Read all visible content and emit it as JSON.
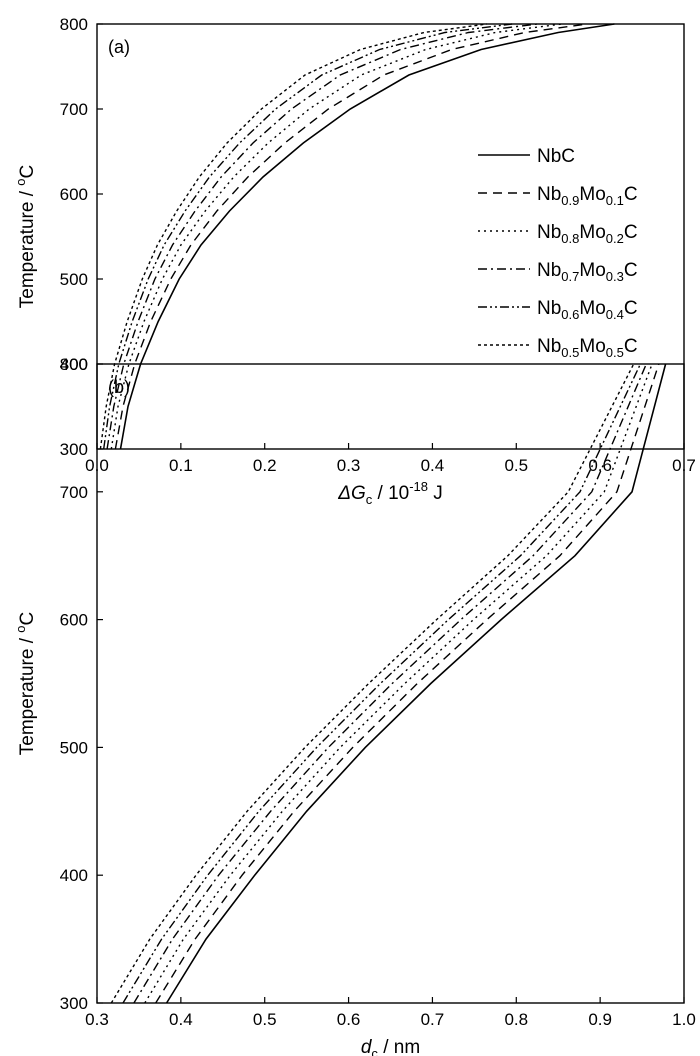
{
  "chart_data": [
    {
      "type": "line",
      "panel_label": "(a)",
      "xlabel": {
        "symbol": "ΔG",
        "sub": "c",
        "mid": " / 10",
        "sup": "-18",
        "unit": " J"
      },
      "ylabel": {
        "main": "Temperature / ",
        "sup": "o",
        "unit": "C"
      },
      "xlim": [
        0.0,
        0.7
      ],
      "ylim": [
        300,
        800
      ],
      "xticks": [
        "0.0",
        "0.1",
        "0.2",
        "0.3",
        "0.4",
        "0.5",
        "0.6",
        "0.7"
      ],
      "yticks": [
        "300",
        "400",
        "500",
        "600",
        "700",
        "800"
      ],
      "legend_position": "right",
      "series": [
        {
          "name": "NbC",
          "legend": {
            "base": "Nb",
            "s1": "",
            "mid": "",
            "s2": "",
            "end": "C"
          },
          "x": [
            0.028,
            0.037,
            0.052,
            0.073,
            0.098,
            0.124,
            0.158,
            0.198,
            0.246,
            0.302,
            0.372,
            0.458,
            0.55,
            0.617
          ],
          "y": [
            300,
            350,
            400,
            450,
            500,
            540,
            580,
            620,
            660,
            700,
            740,
            770,
            790,
            800
          ]
        },
        {
          "name": "Nb0.9Mo0.1C",
          "legend": {
            "base": "Nb",
            "s1": "0.9",
            "mid": "Mo",
            "s2": "0.1",
            "end": "C"
          },
          "x": [
            0.022,
            0.031,
            0.045,
            0.064,
            0.088,
            0.112,
            0.143,
            0.18,
            0.224,
            0.276,
            0.342,
            0.423,
            0.51,
            0.585
          ],
          "y": [
            300,
            350,
            400,
            450,
            500,
            540,
            580,
            620,
            660,
            700,
            740,
            770,
            790,
            800
          ]
        },
        {
          "name": "Nb0.8Mo0.2C",
          "legend": {
            "base": "Nb",
            "s1": "0.8",
            "mid": "Mo",
            "s2": "0.2",
            "end": "C"
          },
          "x": [
            0.017,
            0.025,
            0.038,
            0.056,
            0.078,
            0.1,
            0.129,
            0.163,
            0.204,
            0.253,
            0.315,
            0.392,
            0.475,
            0.555
          ],
          "y": [
            300,
            350,
            400,
            450,
            500,
            540,
            580,
            620,
            660,
            700,
            740,
            770,
            790,
            800
          ]
        },
        {
          "name": "Nb0.7Mo0.3C",
          "legend": {
            "base": "Nb",
            "s1": "0.7",
            "mid": "Mo",
            "s2": "0.3",
            "end": "C"
          },
          "x": [
            0.012,
            0.02,
            0.032,
            0.049,
            0.069,
            0.09,
            0.117,
            0.148,
            0.186,
            0.232,
            0.29,
            0.362,
            0.443,
            0.525
          ],
          "y": [
            300,
            350,
            400,
            450,
            500,
            540,
            580,
            620,
            660,
            700,
            740,
            770,
            790,
            800
          ]
        },
        {
          "name": "Nb0.6Mo0.4C",
          "legend": {
            "base": "Nb",
            "s1": "0.6",
            "mid": "Mo",
            "s2": "0.4",
            "end": "C"
          },
          "x": [
            0.008,
            0.015,
            0.026,
            0.042,
            0.061,
            0.08,
            0.105,
            0.134,
            0.17,
            0.213,
            0.268,
            0.337,
            0.415,
            0.495
          ],
          "y": [
            300,
            350,
            400,
            450,
            500,
            540,
            580,
            620,
            660,
            700,
            740,
            770,
            790,
            800
          ]
        },
        {
          "name": "Nb0.5Mo0.5C",
          "legend": {
            "base": "Nb",
            "s1": "0.5",
            "mid": "Mo",
            "s2": "0.5",
            "end": "C"
          },
          "x": [
            0.004,
            0.011,
            0.021,
            0.036,
            0.054,
            0.072,
            0.095,
            0.122,
            0.155,
            0.196,
            0.248,
            0.314,
            0.39,
            0.465
          ],
          "y": [
            300,
            350,
            400,
            450,
            500,
            540,
            580,
            620,
            660,
            700,
            740,
            770,
            790,
            800
          ]
        }
      ]
    },
    {
      "type": "line",
      "panel_label": "(b)",
      "xlabel": {
        "symbol": "d",
        "sub": "c",
        "mid": " / nm",
        "sup": "",
        "unit": ""
      },
      "ylabel": {
        "main": "Temperature / ",
        "sup": "o",
        "unit": "C"
      },
      "xlim": [
        0.3,
        1.0
      ],
      "ylim": [
        300,
        800
      ],
      "xticks": [
        "0.3",
        "0.4",
        "0.5",
        "0.6",
        "0.7",
        "0.8",
        "0.9",
        "1.0"
      ],
      "yticks": [
        "300",
        "400",
        "500",
        "600",
        "700",
        "800"
      ],
      "series": [
        {
          "name": "NbC",
          "x": [
            0.383,
            0.43,
            0.488,
            0.55,
            0.62,
            0.698,
            0.782,
            0.87,
            0.938,
            0.978
          ],
          "y": [
            300,
            350,
            400,
            450,
            500,
            550,
            600,
            650,
            700,
            800
          ]
        },
        {
          "name": "Nb0.9Mo0.1C",
          "x": [
            0.37,
            0.417,
            0.473,
            0.535,
            0.605,
            0.682,
            0.765,
            0.852,
            0.92,
            0.97
          ],
          "y": [
            300,
            350,
            400,
            450,
            500,
            550,
            600,
            650,
            700,
            800
          ]
        },
        {
          "name": "Nb0.8Mo0.2C",
          "x": [
            0.357,
            0.403,
            0.459,
            0.521,
            0.59,
            0.667,
            0.749,
            0.836,
            0.905,
            0.962
          ],
          "y": [
            300,
            350,
            400,
            450,
            500,
            550,
            600,
            650,
            700,
            800
          ]
        },
        {
          "name": "Nb0.7Mo0.3C",
          "x": [
            0.344,
            0.39,
            0.445,
            0.507,
            0.576,
            0.652,
            0.734,
            0.82,
            0.89,
            0.955
          ],
          "y": [
            300,
            350,
            400,
            450,
            500,
            550,
            600,
            650,
            700,
            800
          ]
        },
        {
          "name": "Nb0.6Mo0.4C",
          "x": [
            0.331,
            0.377,
            0.432,
            0.493,
            0.562,
            0.638,
            0.719,
            0.805,
            0.876,
            0.948
          ],
          "y": [
            300,
            350,
            400,
            450,
            500,
            550,
            600,
            650,
            700,
            800
          ]
        },
        {
          "name": "Nb0.5Mo0.5C",
          "x": [
            0.317,
            0.363,
            0.418,
            0.479,
            0.548,
            0.624,
            0.705,
            0.79,
            0.862,
            0.94
          ],
          "y": [
            300,
            350,
            400,
            450,
            500,
            550,
            600,
            650,
            700,
            800
          ]
        }
      ]
    }
  ]
}
